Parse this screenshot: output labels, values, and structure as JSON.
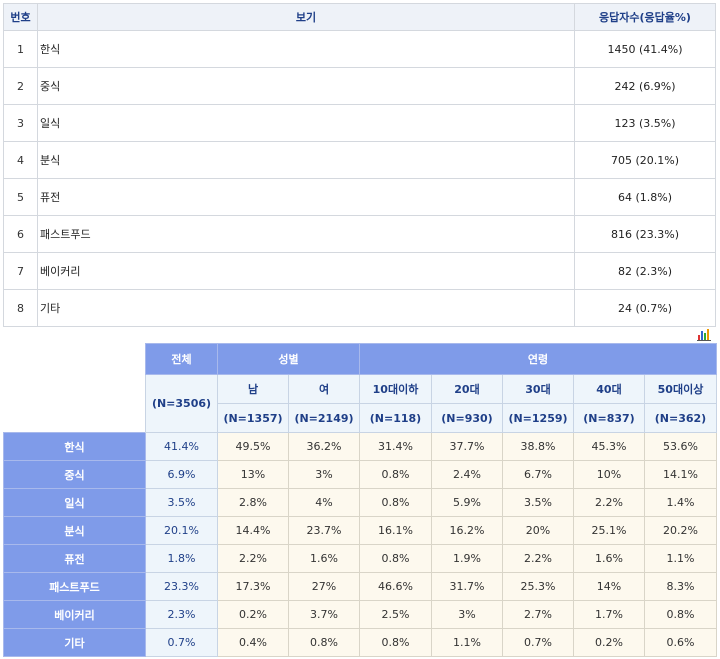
{
  "top_table": {
    "headers": {
      "no": "번호",
      "option": "보기",
      "responses": "응답자수(응답율%)"
    },
    "rows": [
      {
        "no": "1",
        "option": "한식",
        "value": "1450 (41.4%)"
      },
      {
        "no": "2",
        "option": "중식",
        "value": "242 (6.9%)"
      },
      {
        "no": "3",
        "option": "일식",
        "value": "123 (3.5%)"
      },
      {
        "no": "4",
        "option": "분식",
        "value": "705 (20.1%)"
      },
      {
        "no": "5",
        "option": "퓨전",
        "value": "64 (1.8%)"
      },
      {
        "no": "6",
        "option": "패스트푸드",
        "value": "816 (23.3%)"
      },
      {
        "no": "7",
        "option": "베이커리",
        "value": "82 (2.3%)"
      },
      {
        "no": "8",
        "option": "기타",
        "value": "24 (0.7%)"
      }
    ]
  },
  "chart_icon": "bar-chart-icon",
  "cross_table": {
    "total_label": "전체",
    "total_n": "(N=3506)",
    "gender_label": "성별",
    "age_label": "연령",
    "columns": [
      {
        "label": "남",
        "n": "(N=1357)"
      },
      {
        "label": "여",
        "n": "(N=2149)"
      },
      {
        "label": "10대이하",
        "n": "(N=118)"
      },
      {
        "label": "20대",
        "n": "(N=930)"
      },
      {
        "label": "30대",
        "n": "(N=1259)"
      },
      {
        "label": "40대",
        "n": "(N=837)"
      },
      {
        "label": "50대이상",
        "n": "(N=362)"
      }
    ],
    "rows": [
      {
        "label": "한식",
        "total": "41.4%",
        "cells": [
          "49.5%",
          "36.2%",
          "31.4%",
          "37.7%",
          "38.8%",
          "45.3%",
          "53.6%"
        ]
      },
      {
        "label": "중식",
        "total": "6.9%",
        "cells": [
          "13%",
          "3%",
          "0.8%",
          "2.4%",
          "6.7%",
          "10%",
          "14.1%"
        ]
      },
      {
        "label": "일식",
        "total": "3.5%",
        "cells": [
          "2.8%",
          "4%",
          "0.8%",
          "5.9%",
          "3.5%",
          "2.2%",
          "1.4%"
        ]
      },
      {
        "label": "분식",
        "total": "20.1%",
        "cells": [
          "14.4%",
          "23.7%",
          "16.1%",
          "16.2%",
          "20%",
          "25.1%",
          "20.2%"
        ]
      },
      {
        "label": "퓨전",
        "total": "1.8%",
        "cells": [
          "2.2%",
          "1.6%",
          "0.8%",
          "1.9%",
          "2.2%",
          "1.6%",
          "1.1%"
        ]
      },
      {
        "label": "패스트푸드",
        "total": "23.3%",
        "cells": [
          "17.3%",
          "27%",
          "46.6%",
          "31.7%",
          "25.3%",
          "14%",
          "8.3%"
        ]
      },
      {
        "label": "베이커리",
        "total": "2.3%",
        "cells": [
          "0.2%",
          "3.7%",
          "2.5%",
          "3%",
          "2.7%",
          "1.7%",
          "0.8%"
        ]
      },
      {
        "label": "기타",
        "total": "0.7%",
        "cells": [
          "0.4%",
          "0.8%",
          "0.8%",
          "1.1%",
          "0.7%",
          "0.2%",
          "0.6%"
        ]
      }
    ]
  },
  "colors": {
    "header_blue": "#7f9be9",
    "total_bg": "#eef5fb",
    "cell_bg": "#fdf9ee",
    "header_text": "#1f3f88"
  }
}
